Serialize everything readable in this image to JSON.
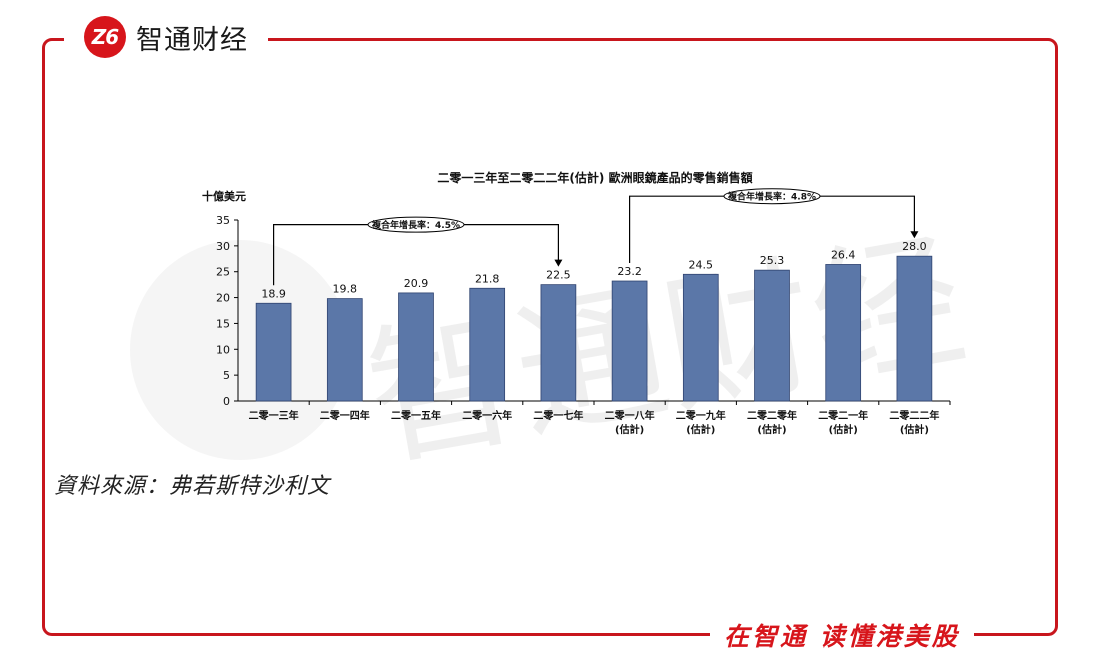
{
  "brand": {
    "logo_mark": "Z6",
    "logo_text": "智通财经",
    "slogan": "在智通 读懂港美股",
    "accent_color": "#d7151b"
  },
  "source_note": "資料來源：弗若斯特沙利文",
  "chart_data": {
    "type": "bar",
    "title": "二零一三年至二零二二年(估計) 歐洲眼鏡產品的零售銷售額",
    "ylabel": "十億美元",
    "ylim": [
      0,
      35
    ],
    "yticks": [
      0,
      5,
      10,
      15,
      20,
      25,
      30,
      35
    ],
    "grid": false,
    "bar_color": "#5b77a8",
    "categories": [
      [
        "二零一三年"
      ],
      [
        "二零一四年"
      ],
      [
        "二零一五年"
      ],
      [
        "二零一六年"
      ],
      [
        "二零一七年"
      ],
      [
        "二零一八年",
        "(估計)"
      ],
      [
        "二零一九年",
        "(估計)"
      ],
      [
        "二零二零年",
        "(估計)"
      ],
      [
        "二零二一年",
        "(估計)"
      ],
      [
        "二零二二年",
        "(估計)"
      ]
    ],
    "values": [
      18.9,
      19.8,
      20.9,
      21.8,
      22.5,
      23.2,
      24.5,
      25.3,
      26.4,
      28.0
    ],
    "value_labels": [
      "18.9",
      "19.8",
      "20.9",
      "21.8",
      "22.5",
      "23.2",
      "24.5",
      "25.3",
      "26.4",
      "28.0"
    ],
    "annotations": [
      {
        "label": "複合年增長率：4.5%",
        "from_index": 0,
        "to_index": 4
      },
      {
        "label": "複合年增長率：4.8%",
        "from_index": 5,
        "to_index": 9
      }
    ]
  }
}
